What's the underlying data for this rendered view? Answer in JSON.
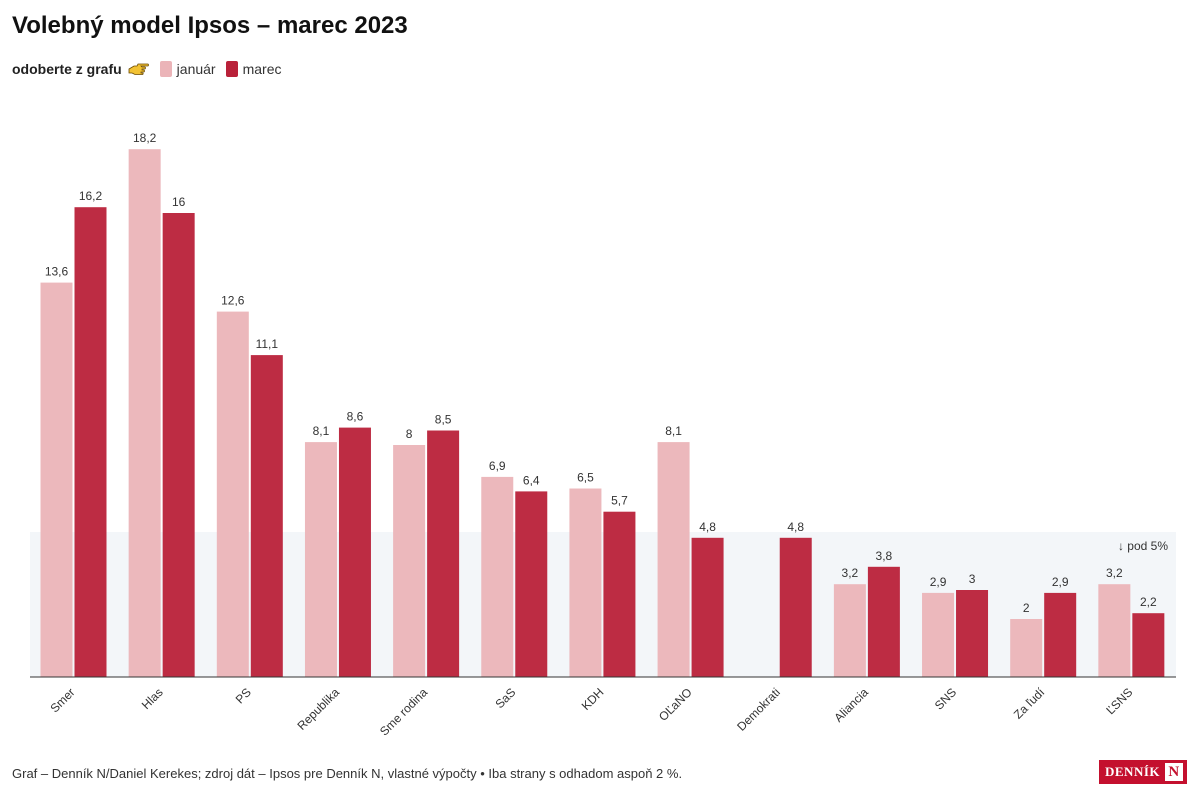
{
  "title": "Volebný model Ipsos – marec 2023",
  "legend": {
    "hint": "odoberte z grafu",
    "hint_icon": "pointing-hand-icon",
    "items": [
      {
        "label": "január",
        "color": "#ebb4b8"
      },
      {
        "label": "marec",
        "color": "#b92139"
      }
    ]
  },
  "chart_data": {
    "type": "bar",
    "categories": [
      "Smer",
      "Hlas",
      "PS",
      "Republika",
      "Sme rodina",
      "SaS",
      "KDH",
      "OĽaNO",
      "Demokrati",
      "Aliancia",
      "SNS",
      "Za ľudí",
      "ĽSNS"
    ],
    "series": [
      {
        "name": "január",
        "values": [
          13.6,
          18.2,
          12.6,
          8.1,
          8,
          6.9,
          6.5,
          8.1,
          null,
          3.2,
          2.9,
          2,
          3.2
        ],
        "labels": [
          "13,6",
          "18,2",
          "12,6",
          "8,1",
          "8",
          "6,9",
          "6,5",
          "8,1",
          "",
          "3,2",
          "2,9",
          "2",
          "3,2"
        ],
        "color": "#ebb4b8"
      },
      {
        "name": "marec",
        "values": [
          16.2,
          16,
          11.1,
          8.6,
          8.5,
          6.4,
          5.7,
          4.8,
          4.8,
          3.8,
          3,
          2.9,
          2.2
        ],
        "labels": [
          "16,2",
          "16",
          "11,1",
          "8,6",
          "8,5",
          "6,4",
          "5,7",
          "4,8",
          "4,8",
          "3,8",
          "3",
          "2,9",
          "2,2"
        ],
        "color": "#b92139"
      }
    ],
    "ylim": [
      0,
      20
    ],
    "threshold": {
      "value": 5,
      "label": "↓ pod 5%"
    },
    "grid": false
  },
  "footer": "Graf – Denník N/Daniel Kerekes; zdroj dát – Ipsos pre Denník N, vlastné výpočty • Iba strany s odhadom aspoň 2 %.",
  "logo": {
    "text": "DENNÍK",
    "mark": "N"
  }
}
